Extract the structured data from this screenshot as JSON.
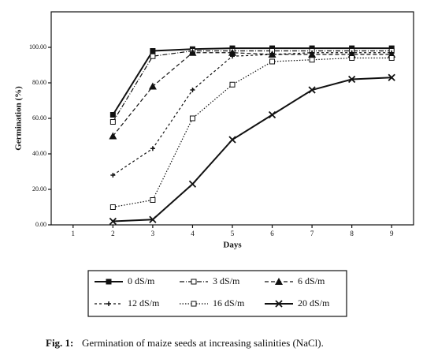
{
  "chart_data": {
    "type": "line",
    "x_label": "Days",
    "y_label": "Germination (%)",
    "caption_label": "Fig. 1:",
    "caption": "Germination of maize seeds at increasing salinities (NaCl).",
    "x": [
      2,
      3,
      4,
      5,
      6,
      7,
      8,
      9
    ],
    "xlim": [
      0.45,
      9.55
    ],
    "xticks": [
      1,
      2,
      3,
      4,
      5,
      6,
      7,
      8,
      9
    ],
    "ylim": [
      0,
      120
    ],
    "yticks": [
      {
        "value": 0,
        "label": "0.00"
      },
      {
        "value": 20,
        "label": "20.00"
      },
      {
        "value": 40,
        "label": "40.00"
      },
      {
        "value": 60,
        "label": "60.00"
      },
      {
        "value": 80,
        "label": "80.00"
      },
      {
        "value": 100,
        "label": "100.00"
      }
    ],
    "series": [
      {
        "name": "0 dS/m",
        "color": "#111111",
        "dash": "none",
        "marker": "filled-square",
        "values": [
          62,
          98,
          99,
          99.5,
          99.5,
          99.5,
          99.5,
          99.5
        ]
      },
      {
        "name": "3 dS/m",
        "color": "#111111",
        "dash": "6 2 1 2",
        "marker": "open-square",
        "values": [
          58,
          95,
          98,
          98,
          98,
          98,
          98,
          98
        ]
      },
      {
        "name": "6 dS/m",
        "color": "#111111",
        "dash": "5 3",
        "marker": "triangle",
        "values": [
          50,
          78,
          97,
          97,
          96,
          96,
          96,
          96
        ]
      },
      {
        "name": "12 dS/m",
        "color": "#111111",
        "dash": "3 3",
        "marker": "plus",
        "values": [
          28,
          43,
          76,
          95,
          96,
          97,
          97,
          97
        ]
      },
      {
        "name": "16 dS/m",
        "color": "#111111",
        "dash": "1.5 2",
        "marker": "open-square",
        "values": [
          10,
          14,
          60,
          79,
          92,
          93,
          94,
          94
        ]
      },
      {
        "name": "20 dS/m",
        "color": "#111111",
        "dash": "none",
        "marker": "cross",
        "values": [
          2,
          3,
          23,
          48,
          62,
          76,
          82,
          83
        ]
      }
    ]
  }
}
